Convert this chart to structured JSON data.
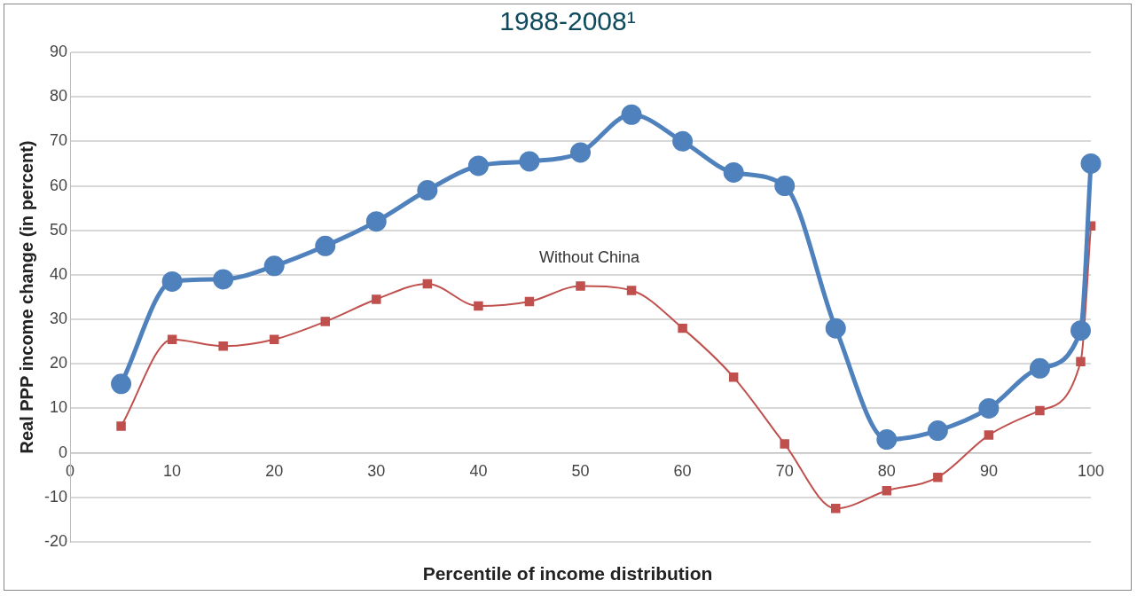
{
  "chart_data": {
    "type": "line",
    "title": "1988-2008¹",
    "xlabel": "Percentile of income distribution",
    "ylabel": "Real PPP income change (in percent)",
    "x": [
      5,
      10,
      15,
      20,
      25,
      30,
      35,
      40,
      45,
      50,
      55,
      60,
      65,
      70,
      75,
      80,
      85,
      90,
      95,
      99,
      100
    ],
    "series": [
      {
        "color": "#4f81bd",
        "marker": "circle",
        "values": [
          15.5,
          38.5,
          39,
          42,
          46.5,
          52,
          59,
          64.5,
          65.5,
          67.5,
          76,
          70,
          63,
          60,
          28,
          3,
          5,
          10,
          19,
          27.5,
          65
        ]
      },
      {
        "name": "Without China",
        "color": "#c0504d",
        "marker": "square",
        "values": [
          6,
          25.5,
          24,
          25.5,
          29.5,
          34.5,
          38,
          33,
          34,
          37.5,
          36.5,
          28,
          17,
          2,
          -12.5,
          -8.5,
          -5.5,
          4,
          9.5,
          20.5,
          51
        ]
      }
    ],
    "xlim": [
      0,
      100
    ],
    "xticks": [
      0,
      10,
      20,
      30,
      40,
      50,
      60,
      70,
      80,
      90,
      100
    ],
    "ylim": [
      -20,
      90
    ],
    "yticks": [
      -20,
      -10,
      0,
      10,
      20,
      30,
      40,
      50,
      60,
      70,
      80,
      90
    ],
    "grid": "y",
    "legend": false
  }
}
